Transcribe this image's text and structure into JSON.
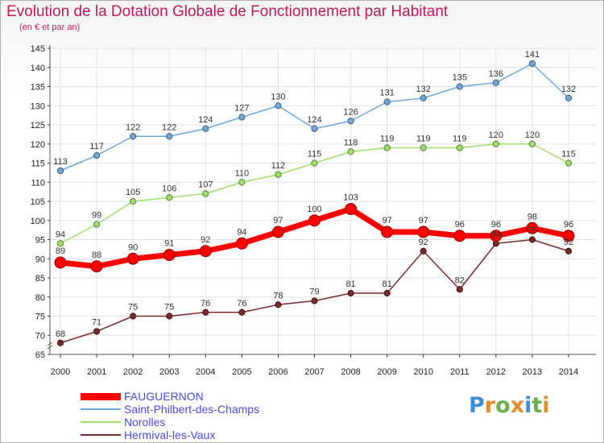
{
  "title": "Evolution de la Dotation Globale de Fonctionnement par Habitant",
  "subtitle": "(en € et par an)",
  "logo_text": "Proxiti",
  "chart_data": {
    "type": "line",
    "title": "Evolution de la Dotation Globale de Fonctionnement par Habitant",
    "subtitle": "(en € et par an)",
    "categories": [
      "2000",
      "2001",
      "2002",
      "2003",
      "2004",
      "2005",
      "2006",
      "2007",
      "2008",
      "2009",
      "2010",
      "2011",
      "2012",
      "2013",
      "2014"
    ],
    "ylim": [
      65,
      145
    ],
    "yticks": [
      65,
      70,
      75,
      80,
      85,
      90,
      95,
      100,
      105,
      110,
      115,
      120,
      125,
      130,
      135,
      140,
      145
    ],
    "grid": true,
    "legend_position": "bottom-left",
    "series": [
      {
        "name": "FAUGUERNON",
        "color": "#ff0000",
        "values": [
          89,
          88,
          90,
          91,
          92,
          94,
          97,
          100,
          103,
          97,
          97,
          96,
          96,
          98,
          96
        ]
      },
      {
        "name": "Saint-Philbert-des-Champs",
        "color": "#6fa8dc",
        "values": [
          113,
          117,
          122,
          122,
          124,
          127,
          130,
          124,
          126,
          131,
          132,
          135,
          136,
          141,
          132
        ]
      },
      {
        "name": "Norolles",
        "color": "#9ee06a",
        "values": [
          94,
          99,
          105,
          106,
          107,
          110,
          112,
          115,
          118,
          119,
          119,
          119,
          120,
          120,
          115
        ]
      },
      {
        "name": "Hermival-les-Vaux",
        "color": "#7a2a2a",
        "values": [
          68,
          71,
          75,
          75,
          76,
          76,
          78,
          79,
          81,
          81,
          92,
          82,
          94,
          95,
          92
        ]
      }
    ]
  }
}
